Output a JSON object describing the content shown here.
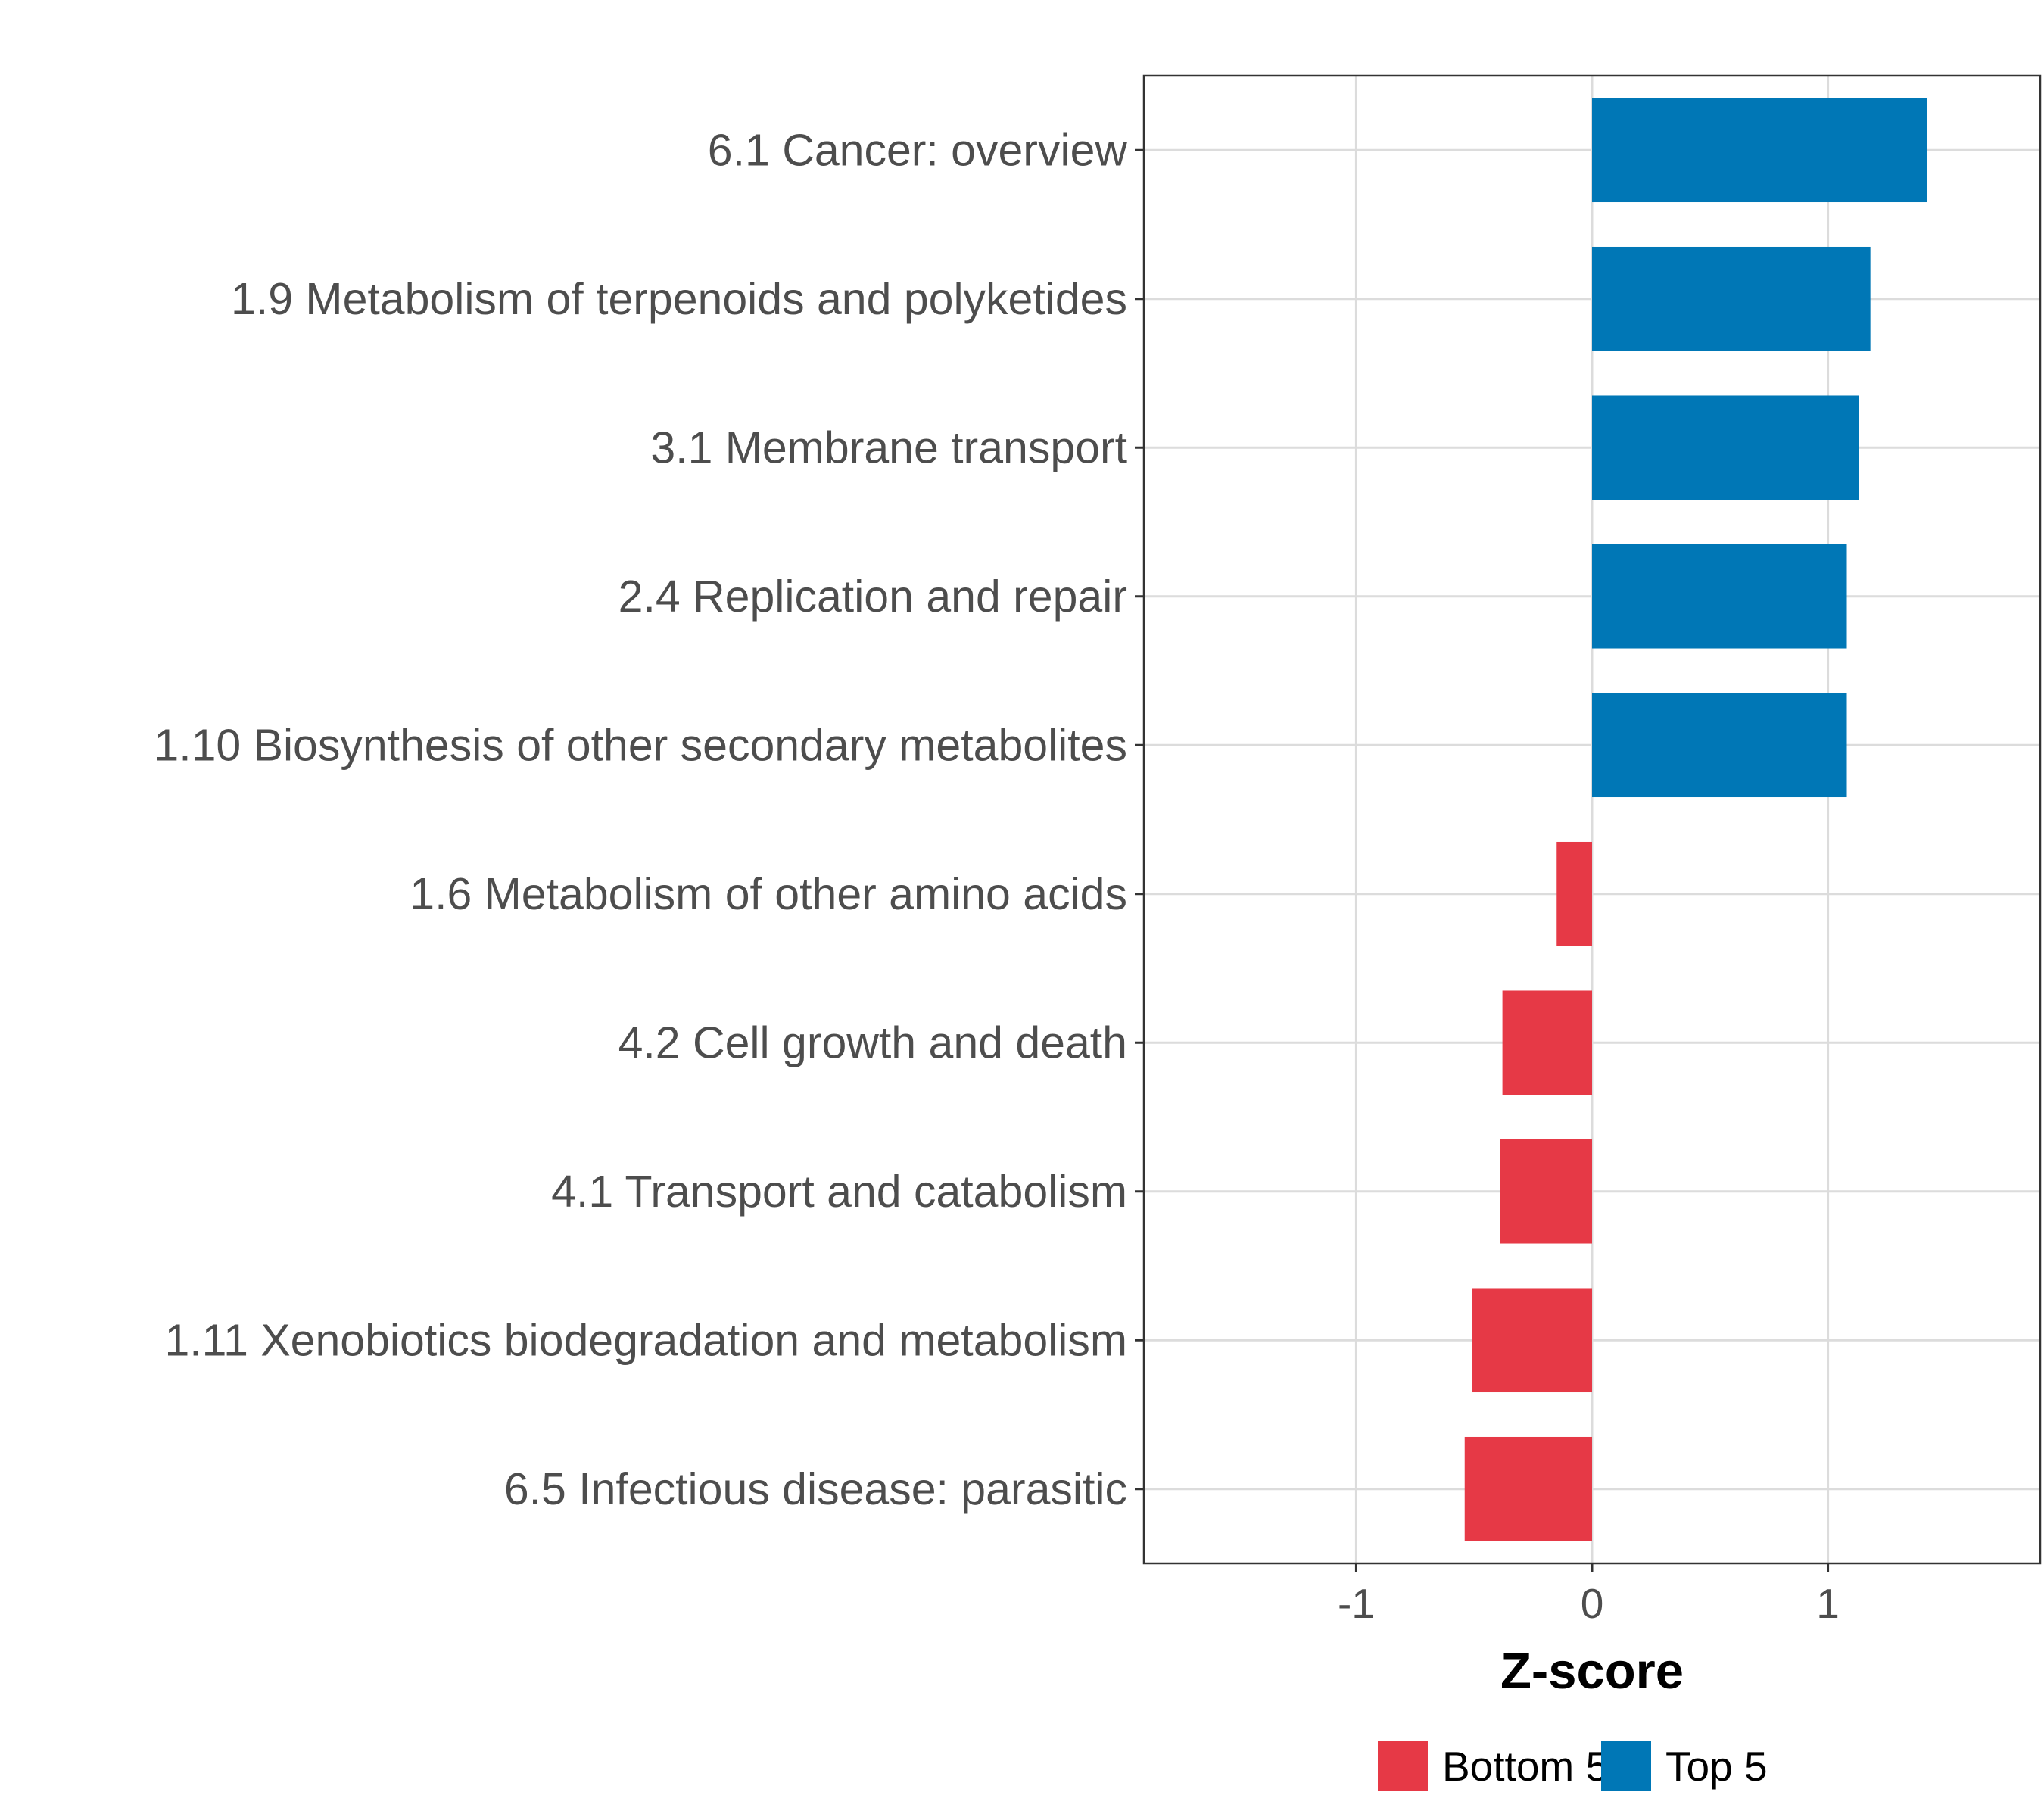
{
  "chart_data": {
    "type": "bar",
    "orientation": "horizontal",
    "title": "",
    "xlabel": "Z-score",
    "ylabel": "",
    "xlim": [
      -1.9,
      1.9
    ],
    "xticks": [
      -1,
      0,
      1
    ],
    "xtick_labels": [
      "-1",
      "0",
      "1"
    ],
    "grid": true,
    "categories": [
      "6.1 Cancer: overview",
      "1.9 Metabolism of terpenoids and polyketides",
      "3.1 Membrane transport",
      "2.4 Replication and repair",
      "1.10 Biosynthesis of other secondary metabolites",
      "1.6 Metabolism of other amino acids",
      "4.2 Cell growth and death",
      "4.1 Transport and catabolism",
      "1.11 Xenobiotics biodegradation and metabolism",
      "6.5 Infectious disease: parasitic"
    ],
    "values": [
      1.42,
      1.18,
      1.13,
      1.08,
      1.08,
      -0.15,
      -0.38,
      -0.39,
      -0.51,
      -0.54
    ],
    "groups": [
      "Top 5",
      "Top 5",
      "Top 5",
      "Top 5",
      "Top 5",
      "Bottom 5",
      "Bottom 5",
      "Bottom 5",
      "Bottom 5",
      "Bottom 5"
    ],
    "legend": {
      "position": "bottom",
      "entries": [
        {
          "name": "Bottom 5",
          "color": "#e63946"
        },
        {
          "name": "Top 5",
          "color": "#0077b6"
        }
      ]
    }
  }
}
